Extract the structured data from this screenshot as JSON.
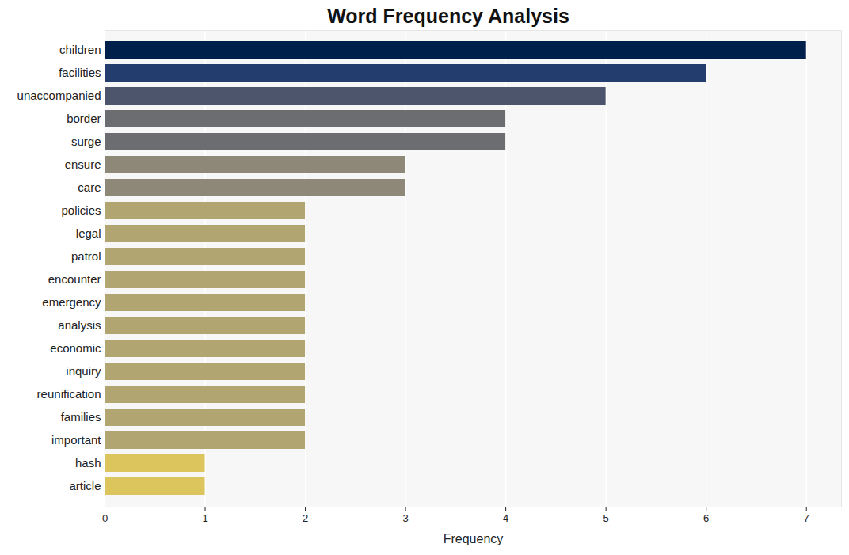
{
  "chart_data": {
    "type": "bar",
    "title": "Word Frequency Analysis",
    "orientation": "horizontal",
    "x_label": "Frequency",
    "categories": [
      "children",
      "facilities",
      "unaccompanied",
      "border",
      "surge",
      "ensure",
      "care",
      "policies",
      "legal",
      "patrol",
      "encounter",
      "emergency",
      "analysis",
      "economic",
      "inquiry",
      "reunification",
      "families",
      "important",
      "hash",
      "article"
    ],
    "values": [
      7,
      6,
      5,
      4,
      4,
      3,
      3,
      2,
      2,
      2,
      2,
      2,
      2,
      2,
      2,
      2,
      2,
      2,
      1,
      1
    ],
    "colors": [
      "#00204c",
      "#233d6f",
      "#4c556c",
      "#6c6d70",
      "#6c6d70",
      "#8e8878",
      "#8e8878",
      "#b1a571",
      "#b1a571",
      "#b1a571",
      "#b1a571",
      "#b1a571",
      "#b1a571",
      "#b1a571",
      "#b1a571",
      "#b1a571",
      "#b1a571",
      "#b1a571",
      "#dcc55c",
      "#dcc55c"
    ],
    "xlim": [
      0,
      7.35
    ],
    "xticks": [
      0,
      1,
      2,
      3,
      4,
      5,
      6,
      7
    ],
    "grid": true
  }
}
